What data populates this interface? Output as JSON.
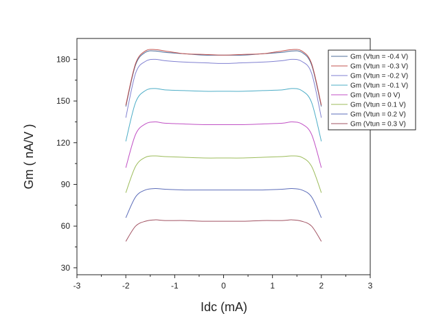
{
  "chart_data": {
    "type": "line",
    "xlabel": "Idc (mA)",
    "ylabel": "Gm ( nA/V )",
    "xlim": [
      -3,
      3
    ],
    "ylim": [
      25,
      195
    ],
    "xticks": [
      -3,
      -2,
      -1,
      0,
      1,
      2,
      3
    ],
    "yticks": [
      30,
      60,
      90,
      120,
      150,
      180
    ],
    "legend_position": "top-right",
    "series": [
      {
        "name": "Gm (Vtun = -0.4 V)",
        "color": "#4d6d9a",
        "x": [
          -2.0,
          -1.8,
          -1.6,
          -1.4,
          -1.2,
          -0.8,
          -0.4,
          0.0,
          0.4,
          0.8,
          1.2,
          1.4,
          1.6,
          1.8,
          2.0
        ],
        "y": [
          146,
          176,
          185,
          186,
          185,
          184,
          183,
          183,
          183,
          184,
          185,
          186,
          185,
          176,
          146
        ]
      },
      {
        "name": "Gm (Vtun = -0.3 V)",
        "color": "#c0504d",
        "x": [
          -2.0,
          -1.8,
          -1.6,
          -1.4,
          -1.2,
          -0.8,
          -0.4,
          0.0,
          0.4,
          0.8,
          1.2,
          1.4,
          1.6,
          1.8,
          2.0
        ],
        "y": [
          147,
          177,
          186,
          187,
          186,
          184,
          183.5,
          183,
          183.5,
          184,
          186,
          187,
          186,
          177,
          147
        ]
      },
      {
        "name": "Gm (Vtun = -0.2 V)",
        "color": "#7f7fd0",
        "x": [
          -2.0,
          -1.8,
          -1.6,
          -1.4,
          -1.2,
          -0.8,
          -0.4,
          0.0,
          0.4,
          0.8,
          1.2,
          1.4,
          1.6,
          1.8,
          2.0
        ],
        "y": [
          138,
          170,
          178.5,
          180,
          179,
          178,
          177.5,
          177,
          177.5,
          178,
          179,
          180,
          178.5,
          170,
          138
        ]
      },
      {
        "name": "Gm (Vtun = -0.1 V)",
        "color": "#4bacc6",
        "x": [
          -2.0,
          -1.8,
          -1.6,
          -1.4,
          -1.2,
          -0.8,
          -0.4,
          0.0,
          0.4,
          0.8,
          1.2,
          1.4,
          1.6,
          1.8,
          2.0
        ],
        "y": [
          121,
          149,
          157.5,
          159,
          158,
          157.5,
          157,
          157,
          157,
          157.5,
          158,
          159,
          157.5,
          149,
          121
        ]
      },
      {
        "name": "Gm (Vtun = 0 V)",
        "color": "#c04fc4",
        "x": [
          -2.0,
          -1.8,
          -1.6,
          -1.4,
          -1.2,
          -0.8,
          -0.4,
          0.0,
          0.4,
          0.8,
          1.2,
          1.4,
          1.6,
          1.8,
          2.0
        ],
        "y": [
          102,
          126,
          133.5,
          135,
          134,
          133.5,
          133,
          133,
          133,
          133.5,
          134,
          135,
          133.5,
          126,
          102
        ]
      },
      {
        "name": "Gm (Vtun = 0.1 V)",
        "color": "#9bbb59",
        "x": [
          -2.0,
          -1.8,
          -1.6,
          -1.4,
          -1.2,
          -0.8,
          -0.4,
          0.0,
          0.4,
          0.8,
          1.2,
          1.4,
          1.6,
          1.8,
          2.0
        ],
        "y": [
          84,
          103,
          109.5,
          110.5,
          110,
          109.5,
          109,
          109,
          109,
          109.5,
          110,
          110.5,
          109.5,
          103,
          84
        ]
      },
      {
        "name": "Gm (Vtun = 0.2 V)",
        "color": "#5a6bb8",
        "x": [
          -2.0,
          -1.8,
          -1.6,
          -1.4,
          -1.2,
          -0.8,
          -0.4,
          0.0,
          0.4,
          0.8,
          1.2,
          1.4,
          1.6,
          1.8,
          2.0
        ],
        "y": [
          66,
          81,
          86,
          87,
          86.5,
          86,
          86,
          86,
          86,
          86,
          86.5,
          87,
          86,
          81,
          66
        ]
      },
      {
        "name": "Gm (Vtun = 0.3 V)",
        "color": "#a05060",
        "x": [
          -2.0,
          -1.8,
          -1.6,
          -1.4,
          -1.2,
          -0.8,
          -0.4,
          0.0,
          0.4,
          0.8,
          1.2,
          1.4,
          1.6,
          1.8,
          2.0
        ],
        "y": [
          49,
          60,
          63.5,
          64.5,
          64,
          64,
          63.5,
          63.5,
          63.5,
          64,
          64,
          64.5,
          63.5,
          60,
          49
        ]
      }
    ]
  }
}
